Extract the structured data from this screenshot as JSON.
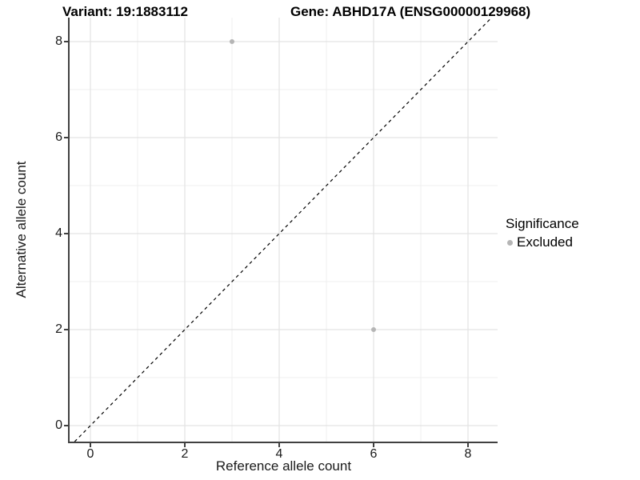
{
  "header": {
    "variant_title": "Variant: 19:1883112",
    "gene_title": "Gene: ABHD17A (ENSG00000129968)"
  },
  "chart_data": {
    "type": "scatter",
    "x": {
      "label": "Reference allele count",
      "ticks": [
        0,
        2,
        4,
        6,
        8
      ],
      "minor_ticks": [
        1,
        3,
        5,
        7
      ],
      "range": [
        -0.45,
        8.63
      ]
    },
    "y": {
      "label": "Alternative allele count",
      "ticks": [
        0,
        2,
        4,
        6,
        8
      ],
      "minor_ticks": [
        1,
        3,
        5,
        7
      ],
      "range": [
        -0.35,
        8.5
      ]
    },
    "points": [
      {
        "x": 3,
        "y": 8,
        "significance": "Excluded"
      },
      {
        "x": 6,
        "y": 2,
        "significance": "Excluded"
      }
    ],
    "identity_line": {
      "style": "dashed",
      "slope": 1,
      "intercept": 0,
      "color": "#000000"
    },
    "legend": {
      "title": "Significance",
      "position": "right",
      "items": [
        {
          "label": "Excluded",
          "color": "#b5b5b5"
        }
      ]
    },
    "grid": "on",
    "colors": {
      "major_grid": "#e3e3e3",
      "minor_grid": "#efefef",
      "axis_line": "#404040",
      "point": "#b5b5b5"
    }
  }
}
